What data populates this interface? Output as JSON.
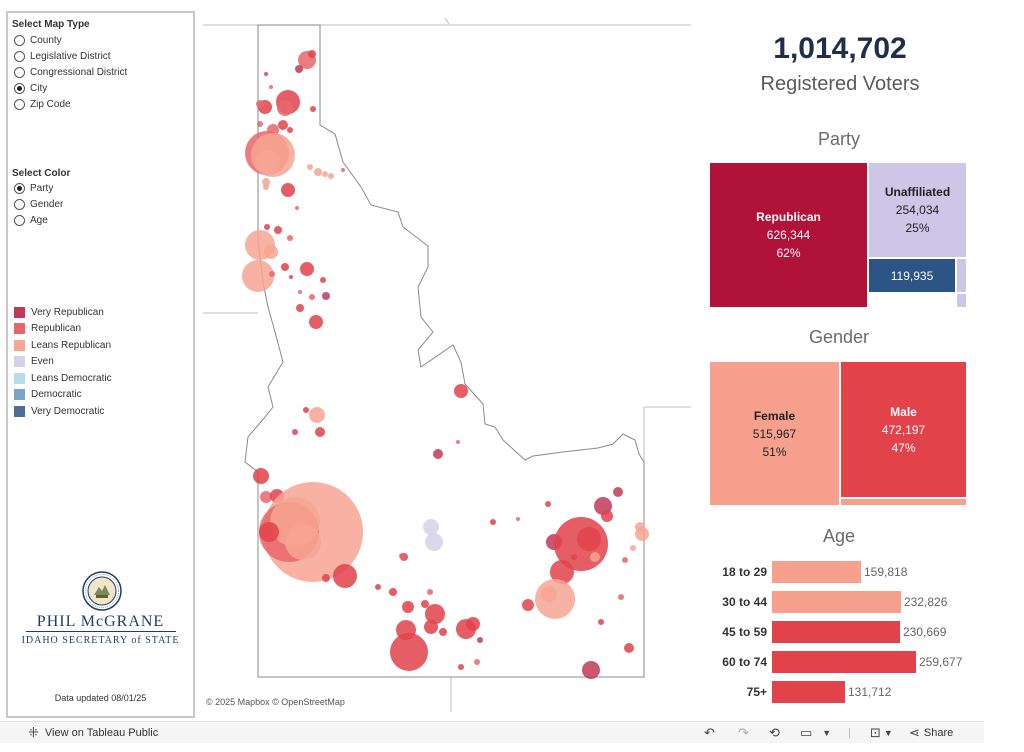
{
  "map_type": {
    "title": "Select Map Type",
    "options": [
      "County",
      "Legislative District",
      "Congressional District",
      "City",
      "Zip Code"
    ],
    "selected": "City"
  },
  "color_select": {
    "title": "Select Color",
    "options": [
      "Party",
      "Gender",
      "Age"
    ],
    "selected": "Party"
  },
  "legend": [
    {
      "label": "Very Republican",
      "color": "#c0395a"
    },
    {
      "label": "Republican",
      "color": "#e8666a"
    },
    {
      "label": "Leans Republican",
      "color": "#f7a594"
    },
    {
      "label": "Even",
      "color": "#d6d0e8"
    },
    {
      "label": "Leans Democratic",
      "color": "#b7dcef"
    },
    {
      "label": "Democratic",
      "color": "#7ca2c9"
    },
    {
      "label": "Very Democratic",
      "color": "#4e6e96"
    }
  ],
  "brand": {
    "name": "PHIL McGRANE",
    "subtitle": "IDAHO SECRETARY of STATE",
    "updated": "Data updated 08/01/25"
  },
  "map": {
    "attribution": "© 2025 Mapbox © OpenStreetMap"
  },
  "summary": {
    "total": "1,014,702",
    "total_label": "Registered Voters"
  },
  "party": {
    "title": "Party",
    "republican": {
      "label": "Republican",
      "count": "626,344",
      "pct": "62%",
      "color": "#b0123a"
    },
    "unaffiliated": {
      "label": "Unaffiliated",
      "count": "254,034",
      "pct": "25%",
      "color": "#cdc6e6"
    },
    "democratic": {
      "count": "119,935",
      "color": "#2c5485"
    }
  },
  "gender": {
    "title": "Gender",
    "female": {
      "label": "Female",
      "count": "515,967",
      "pct": "51%",
      "color": "#f7a08d"
    },
    "male": {
      "label": "Male",
      "count": "472,197",
      "pct": "47%",
      "color": "#e2424a"
    }
  },
  "age": {
    "title": "Age",
    "max_value": 259677,
    "rows": [
      {
        "label": "18 to 29",
        "value": 159818,
        "display": "159,818",
        "color": "#f7a08d"
      },
      {
        "label": "30 to 44",
        "value": 232826,
        "display": "232,826",
        "color": "#f7a08d"
      },
      {
        "label": "45 to 59",
        "value": 230669,
        "display": "230,669",
        "color": "#e2424a"
      },
      {
        "label": "60 to 74",
        "value": 259677,
        "display": "259,677",
        "color": "#e2424a"
      },
      {
        "label": "75+",
        "value": 131712,
        "display": "131,712",
        "color": "#e2424a"
      }
    ]
  },
  "toolbar": {
    "view_label": "View on Tableau Public",
    "share_label": "Share"
  }
}
